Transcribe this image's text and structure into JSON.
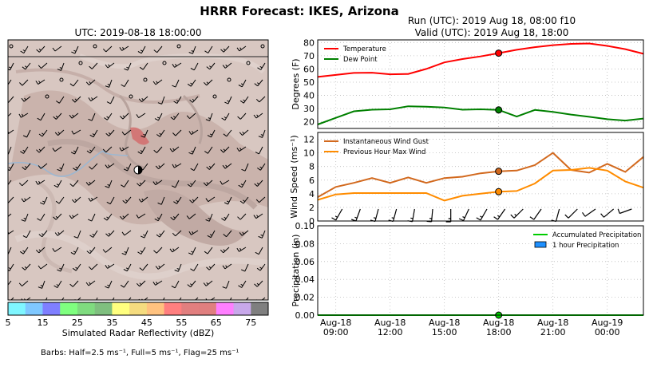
{
  "figure": {
    "title": "HRRR Forecast: IKES, Arizona",
    "footnote": "Barbs: Half=2.5 ms⁻¹, Full=5 ms⁻¹, Flag=25 ms⁻¹"
  },
  "map": {
    "title": "UTC: 2019-08-18 18:00:00",
    "station_marker": "station-marker-icon"
  },
  "colorbar": {
    "label": "Simulated Radar Reflectivity (dBZ)",
    "ticks": [
      "5",
      "15",
      "25",
      "35",
      "45",
      "55",
      "65",
      "75"
    ],
    "colors": [
      "#7ff6ff",
      "#7fc8ff",
      "#7f7fff",
      "#7fff7f",
      "#7fdb7f",
      "#7fbf7f",
      "#ffff7f",
      "#f5dc7f",
      "#ffc27f",
      "#ff7f7f",
      "#e27f7f",
      "#e07f7f",
      "#ff7fff",
      "#c8a8ea",
      "#7f7f7f"
    ]
  },
  "timeseries": {
    "run_label": "Run (UTC): 2019 Aug 18, 08:00 f10",
    "valid_label": "Valid (UTC): 2019 Aug 18, 18:00",
    "x_ticks": [
      "Aug-18\n09:00",
      "Aug-18\n12:00",
      "Aug-18\n15:00",
      "Aug-18\n18:00",
      "Aug-18\n21:00",
      "Aug-19\n00:00"
    ]
  },
  "chart_data": [
    {
      "type": "line",
      "name": "temperature-panel",
      "x": [
        "08:00",
        "09:00",
        "10:00",
        "11:00",
        "12:00",
        "13:00",
        "14:00",
        "15:00",
        "16:00",
        "17:00",
        "18:00",
        "19:00",
        "20:00",
        "21:00",
        "22:00",
        "23:00",
        "00:00",
        "01:00",
        "02:00"
      ],
      "series": [
        {
          "name": "Temperature",
          "color": "#ff0000",
          "values": [
            54,
            55.5,
            57,
            57.2,
            56,
            56.2,
            60,
            65,
            67.5,
            69.5,
            72,
            74.5,
            76.5,
            78,
            79,
            79.3,
            77.5,
            75,
            71.5
          ]
        },
        {
          "name": "Dew Point",
          "color": "#008000",
          "values": [
            18,
            23,
            28,
            29.2,
            29.5,
            31.8,
            31.5,
            30.8,
            29.2,
            29.5,
            29,
            24,
            29,
            27.5,
            25.5,
            23.8,
            22,
            21,
            22.5
          ]
        }
      ],
      "ylabel": "Degrees (F)",
      "ylim": [
        15,
        82
      ],
      "yticks": [
        "20",
        "30",
        "40",
        "50",
        "60",
        "70",
        "80"
      ],
      "highlight_x": "18:00",
      "legend": "upper-left",
      "grid": true
    },
    {
      "type": "line",
      "name": "wind-panel",
      "x": [
        "08:00",
        "09:00",
        "10:00",
        "11:00",
        "12:00",
        "13:00",
        "14:00",
        "15:00",
        "16:00",
        "17:00",
        "18:00",
        "19:00",
        "20:00",
        "21:00",
        "22:00",
        "23:00",
        "00:00",
        "01:00",
        "02:00"
      ],
      "series": [
        {
          "name": "Instantaneous Wind Gust",
          "color": "#d2691e",
          "values": [
            3.5,
            5,
            5.6,
            6.3,
            5.6,
            6.4,
            5.6,
            6.3,
            6.5,
            7,
            7.3,
            7.4,
            8.2,
            10,
            7.5,
            7.1,
            8.4,
            7.2,
            9.4
          ]
        },
        {
          "name": "Previous Hour Max Wind",
          "color": "#ff8c00",
          "values": [
            3.1,
            3.9,
            4.1,
            4.1,
            4.1,
            4.1,
            4.1,
            3,
            3.7,
            4,
            4.3,
            4.4,
            5.5,
            7.4,
            7.5,
            7.8,
            7.4,
            5.8,
            4.9
          ]
        }
      ],
      "ylabel": "Wind Speed (ms⁻¹)",
      "ylim": [
        0,
        13
      ],
      "yticks": [
        "0",
        "2",
        "4",
        "6",
        "8",
        "10",
        "12"
      ],
      "barb_direction_deg": [
        200,
        210,
        200,
        195,
        195,
        190,
        185,
        180,
        205,
        210,
        215,
        225,
        215,
        195,
        225,
        235,
        230,
        250,
        250
      ],
      "legend": "upper-left",
      "grid": true
    },
    {
      "type": "bar",
      "name": "precip-panel",
      "x": [
        "08:00",
        "09:00",
        "10:00",
        "11:00",
        "12:00",
        "13:00",
        "14:00",
        "15:00",
        "16:00",
        "17:00",
        "18:00",
        "19:00",
        "20:00",
        "21:00",
        "22:00",
        "23:00",
        "00:00",
        "01:00",
        "02:00"
      ],
      "series": [
        {
          "name": "Accumulated Precipitation",
          "color": "#00cc00",
          "values": [
            0,
            0,
            0,
            0,
            0,
            0,
            0,
            0,
            0,
            0,
            0,
            0,
            0,
            0,
            0,
            0,
            0,
            0,
            0
          ]
        },
        {
          "name": "1 hour Precipitation",
          "color": "#1e90ff",
          "values": [
            0,
            0,
            0,
            0,
            0,
            0,
            0,
            0,
            0,
            0,
            0,
            0,
            0,
            0,
            0,
            0,
            0,
            0,
            0
          ]
        }
      ],
      "ylabel": "Precipitation (in)",
      "ylim": [
        0,
        0.1
      ],
      "yticks": [
        "0.00",
        "0.02",
        "0.04",
        "0.06",
        "0.08",
        "0.10"
      ],
      "legend": "upper-right",
      "grid": true
    }
  ]
}
